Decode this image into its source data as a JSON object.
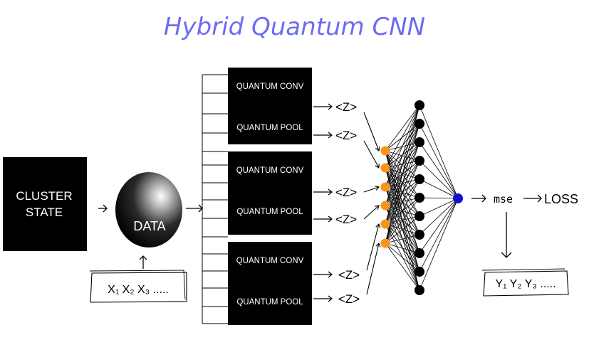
{
  "title": "Hybrid Quantum CNN",
  "input_block": {
    "line1": "CLUSTER",
    "line2": "STATE"
  },
  "data_node": {
    "label": "DATA"
  },
  "inputs_box": {
    "text": "X₁ X₂ X₃ ....."
  },
  "blocks": [
    {
      "conv_label": "QUANTUM CONV",
      "pool_label": "QUANTUM POOL"
    },
    {
      "conv_label": "QUANTUM CONV",
      "pool_label": "QUANTUM POOL"
    },
    {
      "conv_label": "QUANTUM CONV",
      "pool_label": "QUANTUM POOL"
    }
  ],
  "expectation_label": "<Z>",
  "network": {
    "input_nodes": 6,
    "hidden_nodes": 11,
    "output_nodes": 1
  },
  "mse_label": "mse",
  "loss_label": "LOSS",
  "outputs_box": {
    "text": "Y₁ Y₂ Y₃ ....."
  },
  "colors": {
    "title": "#6c6cf0",
    "block": "#000000",
    "input_node": "#f7941d",
    "hidden_node": "#000000",
    "output_node": "#1010d0"
  }
}
